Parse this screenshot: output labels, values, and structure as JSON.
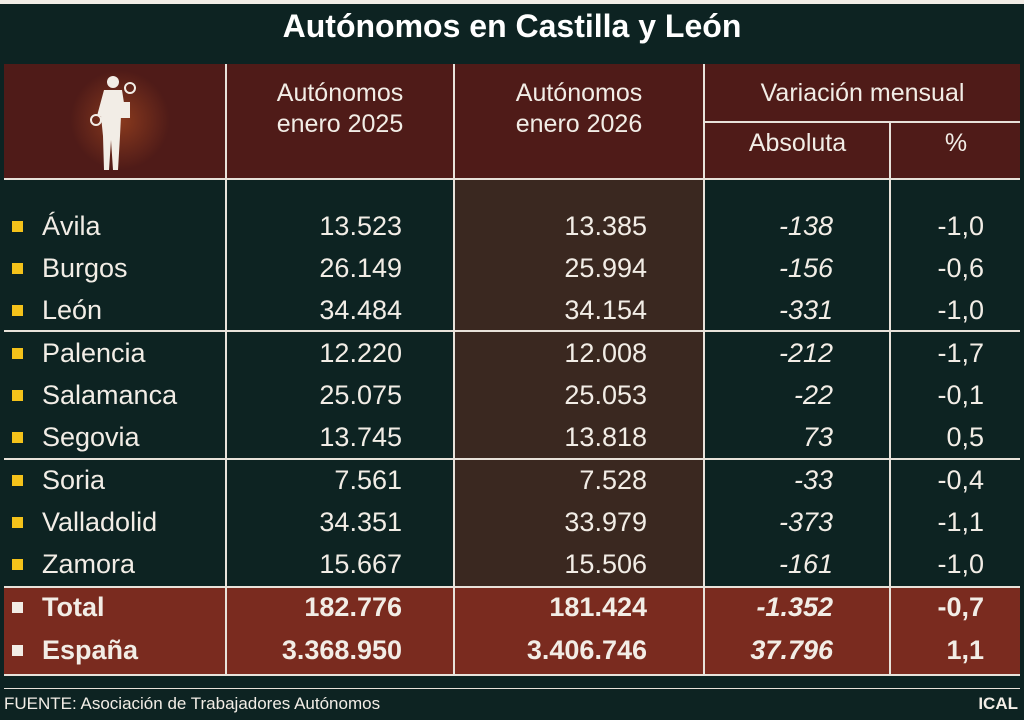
{
  "title": "Autónomos en Castilla y León",
  "chart_data": {
    "type": "table",
    "title": "Autónomos en Castilla y León",
    "columns": [
      "Autónomos enero 2025",
      "Autónomos enero 2026",
      "Variación mensual",
      "Absoluta",
      "%"
    ],
    "rows": [
      {
        "name": "Ávila",
        "v2025": "13.523",
        "v2026": "13.385",
        "abs": "-138",
        "pct": "-1,0"
      },
      {
        "name": "Burgos",
        "v2025": "26.149",
        "v2026": "25.994",
        "abs": "-156",
        "pct": "-0,6"
      },
      {
        "name": "León",
        "v2025": "34.484",
        "v2026": "34.154",
        "abs": "-331",
        "pct": "-1,0"
      },
      {
        "name": "Palencia",
        "v2025": "12.220",
        "v2026": "12.008",
        "abs": "-212",
        "pct": "-1,7"
      },
      {
        "name": "Salamanca",
        "v2025": "25.075",
        "v2026": "25.053",
        "abs": "-22",
        "pct": "-0,1"
      },
      {
        "name": "Segovia",
        "v2025": "13.745",
        "v2026": "13.818",
        "abs": "73",
        "pct": "0,5"
      },
      {
        "name": "Soria",
        "v2025": "7.561",
        "v2026": "7.528",
        "abs": "-33",
        "pct": "-0,4"
      },
      {
        "name": "Valladolid",
        "v2025": "34.351",
        "v2026": "33.979",
        "abs": "-373",
        "pct": "-1,1"
      },
      {
        "name": "Zamora",
        "v2025": "15.667",
        "v2026": "15.506",
        "abs": "-161",
        "pct": "-1,0"
      },
      {
        "name": "Total",
        "v2025": "182.776",
        "v2026": "181.424",
        "abs": "-1.352",
        "pct": "-0,7"
      },
      {
        "name": "España",
        "v2025": "3.368.950",
        "v2026": "3.406.746",
        "abs": "37.796",
        "pct": "1,1"
      }
    ]
  },
  "header": {
    "col1": [
      "Autónomos",
      "enero 2025"
    ],
    "col2": [
      "Autónomos",
      "enero 2026"
    ],
    "group": "Variación mensual",
    "abs": "Absoluta",
    "pct": "%"
  },
  "footer": {
    "source": "FUENTE: Asociación de Trabajadores Autónomos",
    "brand": "ICAL"
  },
  "colors": {
    "background": "#0d2322",
    "header": "#4f1b18",
    "total": "#7a2b1f",
    "bullet": "#f4c21a"
  },
  "icons": {
    "header": "worker-with-tools-icon"
  }
}
